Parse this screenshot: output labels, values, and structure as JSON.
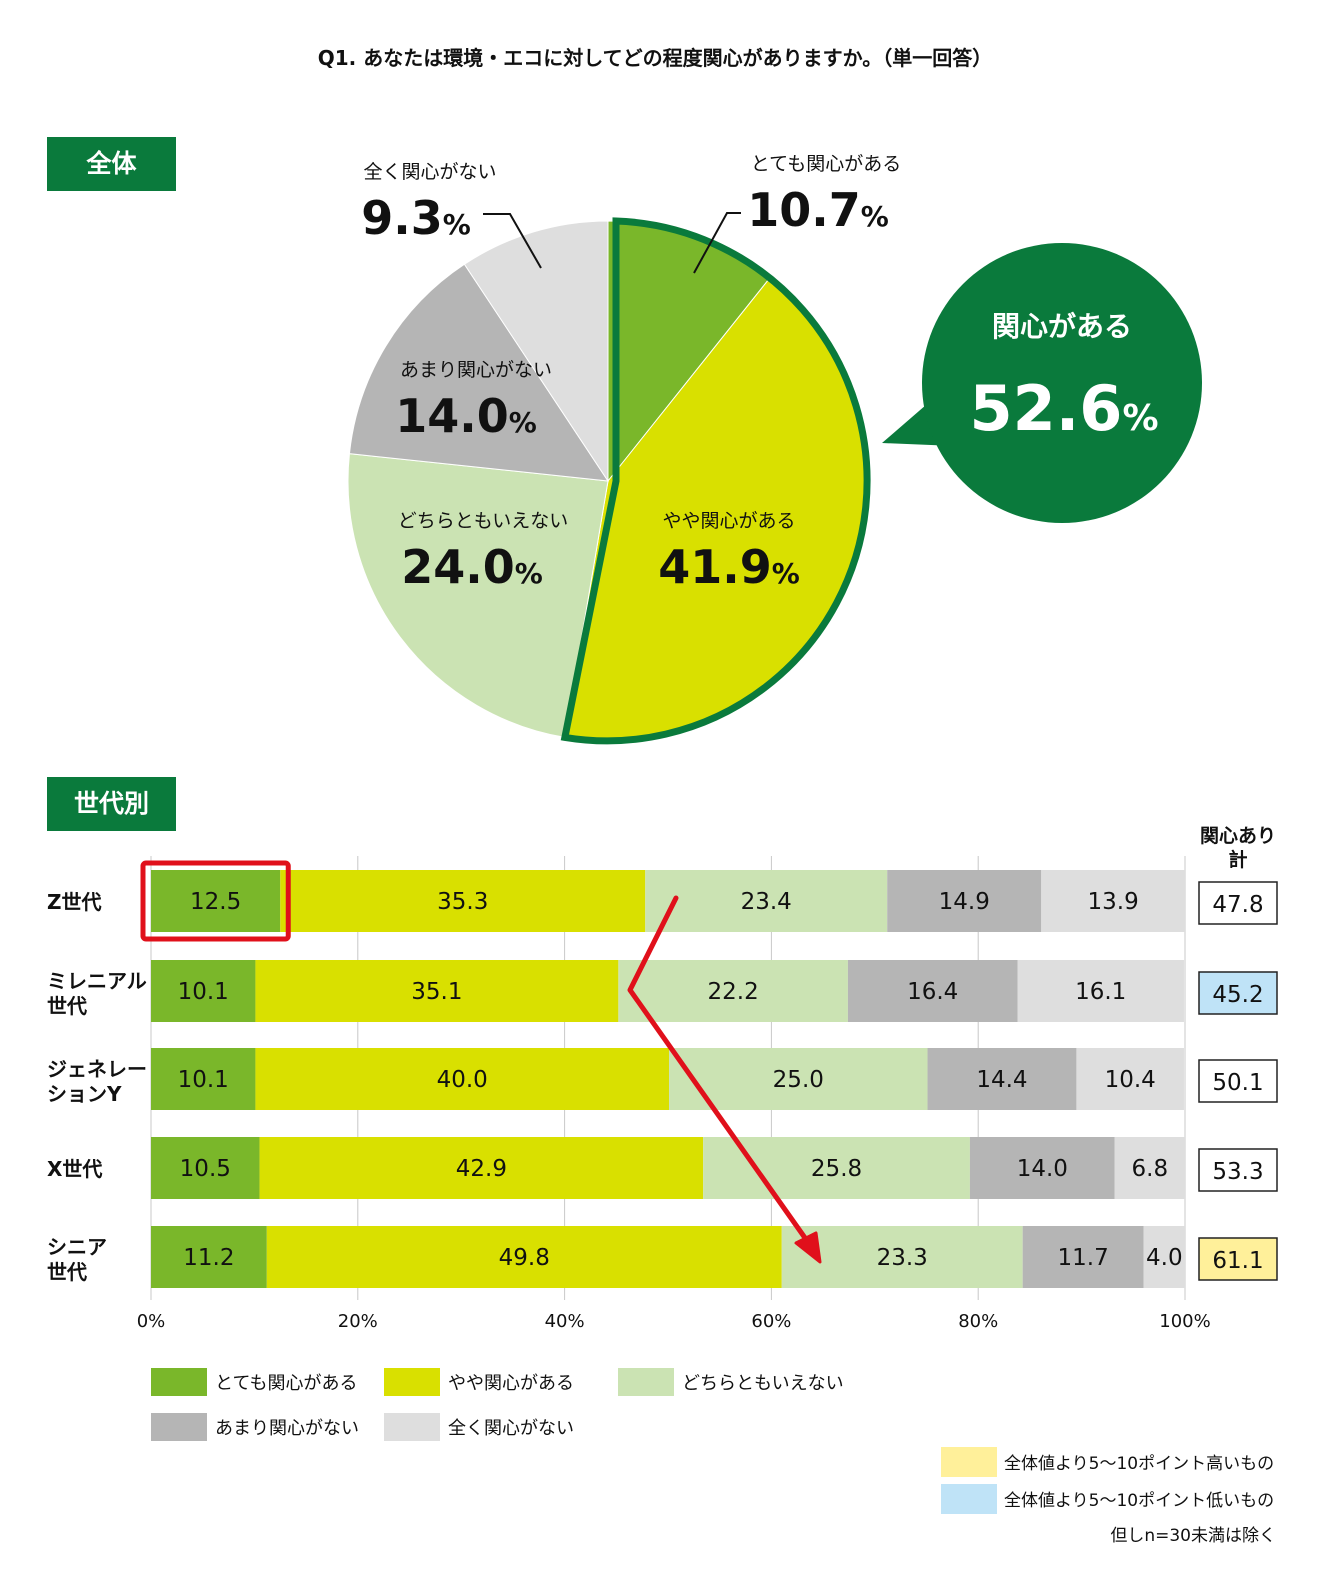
{
  "question": "Q1. あなたは環境・エコに対してどの程度関心がありますか。（単一回答）",
  "sections": {
    "overall": "全体",
    "generation": "世代別"
  },
  "colors": {
    "very": "#7ab72a",
    "somewhat": "#d9e000",
    "neither": "#cbe3b3",
    "not_much": "#b5b5b5",
    "not_at_all": "#dedede",
    "accent_green": "#0a7a3c",
    "arrow": "#e0101b",
    "highlight_high": "#fff09a",
    "highlight_low": "#bfe3f7"
  },
  "callout": {
    "label": "関心がある",
    "value": "52.6",
    "unit": "%"
  },
  "total_header": [
    "関心あり",
    "計"
  ],
  "notes": {
    "high": "全体値より5～10ポイント高いもの",
    "low": "全体値より5～10ポイント低いもの",
    "exclusion": "但しn=30未満は除く"
  },
  "chart_data": [
    {
      "type": "pie",
      "title": "全体",
      "slices": [
        {
          "label": "とても関心がある",
          "value": 10.7,
          "display": "10.7"
        },
        {
          "label": "やや関心がある",
          "value": 41.9,
          "display": "41.9"
        },
        {
          "label": "どちらともいえない",
          "value": 24.0,
          "display": "24.0"
        },
        {
          "label": "あまり関心がない",
          "value": 14.0,
          "display": "14.0"
        },
        {
          "label": "全く関心がない",
          "value": 9.3,
          "display": "9.3"
        }
      ],
      "unit": "%"
    },
    {
      "type": "bar",
      "title": "世代別",
      "stacked": true,
      "orientation": "horizontal",
      "xlim": [
        0,
        100
      ],
      "xticks": [
        "0%",
        "20%",
        "40%",
        "60%",
        "80%",
        "100%"
      ],
      "categories": [
        [
          "Z世代"
        ],
        [
          "ミレニアル",
          "世代"
        ],
        [
          "ジェネレー",
          "ションY"
        ],
        [
          "X世代"
        ],
        [
          "シニア",
          "世代"
        ]
      ],
      "series": [
        {
          "name": "とても関心がある",
          "values": [
            "12.5",
            "10.1",
            "10.1",
            "10.5",
            "11.2"
          ]
        },
        {
          "name": "やや関心がある",
          "values": [
            "35.3",
            "35.1",
            "40.0",
            "42.9",
            "49.8"
          ]
        },
        {
          "name": "どちらともいえない",
          "values": [
            "23.4",
            "22.2",
            "25.0",
            "25.8",
            "23.3"
          ]
        },
        {
          "name": "あまり関心がない",
          "values": [
            "14.9",
            "16.4",
            "14.4",
            "14.0",
            "11.7"
          ]
        },
        {
          "name": "全く関心がない",
          "values": [
            "13.9",
            "16.1",
            "10.4",
            "6.8",
            "4.0"
          ]
        }
      ],
      "totals": [
        {
          "value": "47.8",
          "highlight": "none"
        },
        {
          "value": "45.2",
          "highlight": "low"
        },
        {
          "value": "50.1",
          "highlight": "none"
        },
        {
          "value": "53.3",
          "highlight": "none"
        },
        {
          "value": "61.1",
          "highlight": "high"
        }
      ],
      "highlighted_cell": {
        "row": 0,
        "series": 0
      },
      "legend": [
        "とても関心がある",
        "やや関心がある",
        "どちらともいえない",
        "あまり関心がない",
        "全く関心がない"
      ],
      "legend_position": "bottom",
      "grid": true
    }
  ]
}
